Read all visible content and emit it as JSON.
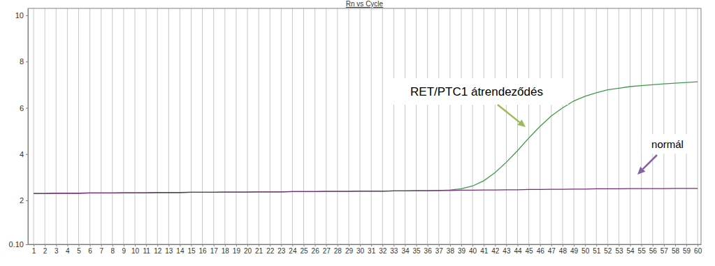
{
  "chart_data": {
    "type": "line",
    "title": "Rn vs Cycle",
    "x": [
      1,
      2,
      3,
      4,
      5,
      6,
      7,
      8,
      9,
      10,
      11,
      12,
      13,
      14,
      15,
      16,
      17,
      18,
      19,
      20,
      21,
      22,
      23,
      24,
      25,
      26,
      27,
      28,
      29,
      30,
      31,
      32,
      33,
      34,
      35,
      36,
      37,
      38,
      39,
      40,
      41,
      42,
      43,
      44,
      45,
      46,
      47,
      48,
      49,
      50,
      51,
      52,
      53,
      54,
      55,
      56,
      57,
      58,
      59,
      60
    ],
    "series": [
      {
        "color": "#3f9a48",
        "values": [
          2.3,
          2.3,
          2.31,
          2.31,
          2.31,
          2.32,
          2.32,
          2.32,
          2.33,
          2.33,
          2.33,
          2.34,
          2.34,
          2.34,
          2.35,
          2.35,
          2.35,
          2.36,
          2.36,
          2.36,
          2.37,
          2.37,
          2.37,
          2.38,
          2.38,
          2.38,
          2.39,
          2.39,
          2.39,
          2.4,
          2.4,
          2.4,
          2.41,
          2.41,
          2.42,
          2.42,
          2.43,
          2.45,
          2.5,
          2.62,
          2.85,
          3.2,
          3.65,
          4.15,
          4.7,
          5.2,
          5.65,
          6.0,
          6.3,
          6.5,
          6.65,
          6.78,
          6.85,
          6.92,
          6.96,
          7.0,
          7.04,
          7.07,
          7.1,
          7.13
        ]
      },
      {
        "color": "#7a2a7a",
        "values": [
          2.3,
          2.3,
          2.31,
          2.31,
          2.31,
          2.32,
          2.32,
          2.32,
          2.33,
          2.33,
          2.33,
          2.34,
          2.34,
          2.34,
          2.35,
          2.35,
          2.35,
          2.36,
          2.36,
          2.36,
          2.37,
          2.37,
          2.37,
          2.38,
          2.38,
          2.38,
          2.39,
          2.39,
          2.39,
          2.4,
          2.4,
          2.4,
          2.41,
          2.41,
          2.42,
          2.42,
          2.43,
          2.43,
          2.44,
          2.44,
          2.45,
          2.45,
          2.46,
          2.46,
          2.47,
          2.47,
          2.48,
          2.48,
          2.49,
          2.49,
          2.5,
          2.5,
          2.5,
          2.51,
          2.51,
          2.51,
          2.51,
          2.52,
          2.52,
          2.52
        ]
      }
    ],
    "annotations": [
      "RET/PTC1 átrendeződés",
      "normál"
    ],
    "xlim": [
      0.5,
      60.3
    ],
    "xticks": [
      1,
      2,
      3,
      4,
      5,
      6,
      7,
      8,
      9,
      10,
      11,
      12,
      13,
      14,
      15,
      16,
      17,
      18,
      19,
      20,
      21,
      22,
      23,
      24,
      25,
      26,
      27,
      28,
      29,
      30,
      31,
      32,
      33,
      34,
      35,
      36,
      37,
      38,
      39,
      40,
      41,
      42,
      43,
      44,
      45,
      46,
      47,
      48,
      49,
      50,
      51,
      52,
      53,
      54,
      55,
      56,
      57,
      58,
      59,
      60
    ],
    "ylim": [
      0.1,
      10.3
    ],
    "yticks": [
      {
        "value": 0.1,
        "label": "0.10"
      },
      2,
      4,
      6,
      8,
      10
    ],
    "grid": "x"
  }
}
